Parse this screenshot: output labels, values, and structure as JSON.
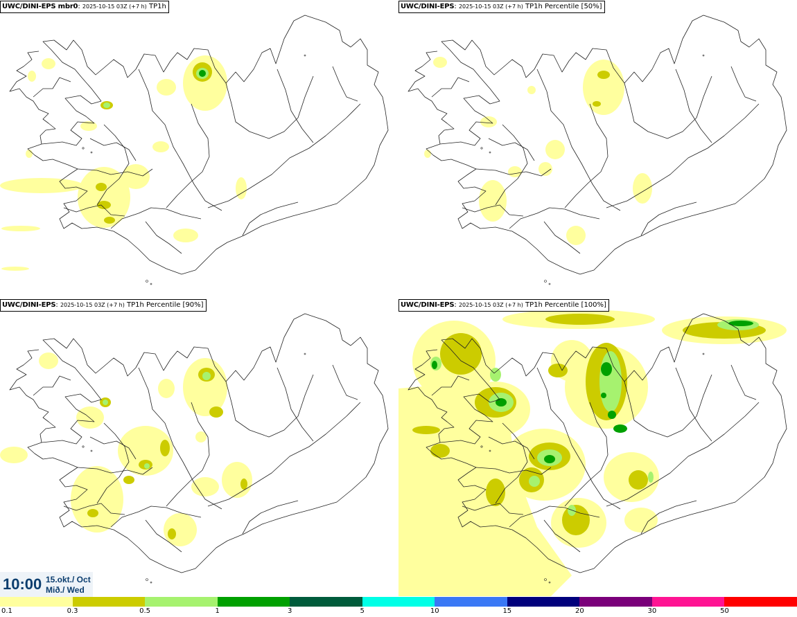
{
  "panels": [
    {
      "model": "UWC/DINI-EPS mbr0",
      "date": "2025-10-15 03Z (+7 h)",
      "field": "TP1h"
    },
    {
      "model": "UWC/DINI-EPS",
      "date": "2025-10-15 03Z (+7 h)",
      "field": "TP1h Percentile [50%]"
    },
    {
      "model": "UWC/DINI-EPS",
      "date": "2025-10-15 03Z (+7 h)",
      "field": "TP1h Percentile [90%]"
    },
    {
      "model": "UWC/DINI-EPS",
      "date": "2025-10-15 03Z (+7 h)",
      "field": "TP1h Percentile [100%]"
    }
  ],
  "time": {
    "clock": "10:00",
    "date_line": "15.okt./ Oct",
    "day_line": "Mið./ Wed"
  },
  "legend": {
    "labels": [
      "0.1",
      "0.3",
      "0.5",
      "1",
      "3",
      "5",
      "10",
      "15",
      "20",
      "30",
      "50"
    ],
    "colors": [
      "#ffff9e",
      "#cccc00",
      "#a6f26f",
      "#00a000",
      "#005b3b",
      "#00ffe6",
      "#3a78f5",
      "#00007c",
      "#7a007a",
      "#ff1493",
      "#ff0000"
    ]
  }
}
